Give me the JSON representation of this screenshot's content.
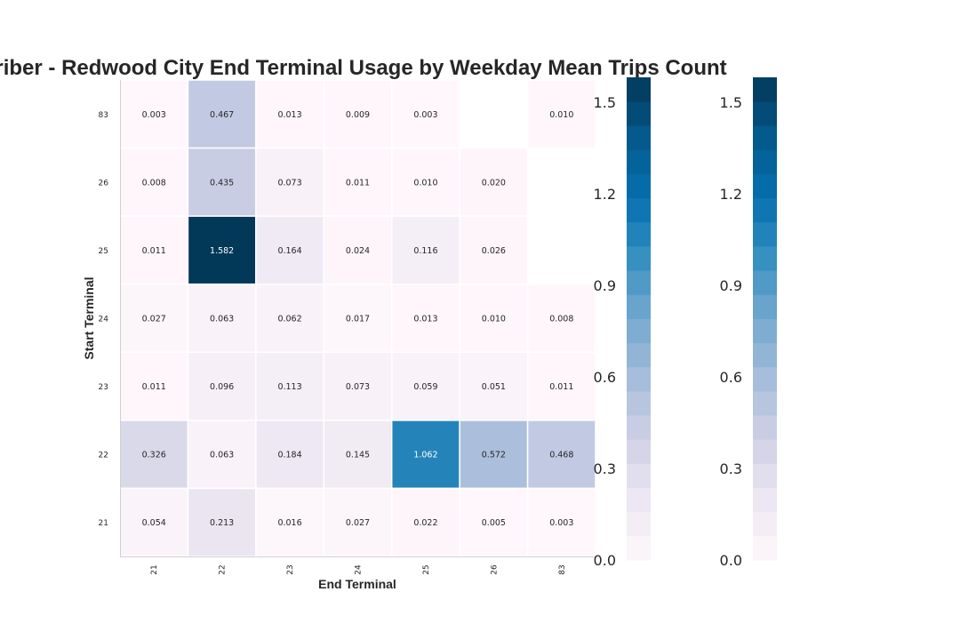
{
  "chart_data": {
    "type": "heatmap",
    "title": "Subscriber - Redwood City End Terminal Usage by Weekday Mean Trips Count",
    "xlabel": "End Terminal",
    "ylabel": "Start Terminal",
    "x_categories": [
      "21",
      "22",
      "23",
      "24",
      "25",
      "26",
      "83"
    ],
    "y_categories_top_to_bottom": [
      "83",
      "26",
      "25",
      "24",
      "23",
      "22",
      "21"
    ],
    "values": [
      [
        0.003,
        0.467,
        0.013,
        0.009,
        0.003,
        null,
        0.01
      ],
      [
        0.008,
        0.435,
        0.073,
        0.011,
        0.01,
        0.02,
        null
      ],
      [
        0.011,
        1.582,
        0.164,
        0.024,
        0.116,
        0.026,
        null
      ],
      [
        0.027,
        0.063,
        0.062,
        0.017,
        0.013,
        0.01,
        0.008
      ],
      [
        0.011,
        0.096,
        0.113,
        0.073,
        0.059,
        0.051,
        0.011
      ],
      [
        0.326,
        0.063,
        0.184,
        0.145,
        1.062,
        0.572,
        0.468
      ],
      [
        0.054,
        0.213,
        0.016,
        0.027,
        0.022,
        0.005,
        0.003
      ]
    ],
    "value_labels": [
      [
        "0.003",
        "0.467",
        "0.013",
        "0.009",
        "0.003",
        "",
        "0.010"
      ],
      [
        "0.008",
        "0.435",
        "0.073",
        "0.011",
        "0.010",
        "0.020",
        ""
      ],
      [
        "0.011",
        "1.582",
        "0.164",
        "0.024",
        "0.116",
        "0.026",
        ""
      ],
      [
        "0.027",
        "0.063",
        "0.062",
        "0.017",
        "0.013",
        "0.010",
        "0.008"
      ],
      [
        "0.011",
        "0.096",
        "0.113",
        "0.073",
        "0.059",
        "0.051",
        "0.011"
      ],
      [
        "0.326",
        "0.063",
        "0.184",
        "0.145",
        "1.062",
        "0.572",
        "0.468"
      ],
      [
        "0.054",
        "0.213",
        "0.016",
        "0.027",
        "0.022",
        "0.005",
        "0.003"
      ]
    ],
    "colorbar": {
      "range": [
        0,
        1.582
      ],
      "ticks": [
        0.0,
        0.3,
        0.6,
        0.9,
        1.2,
        1.5
      ],
      "tick_labels": [
        "0.0",
        "0.3",
        "0.6",
        "0.9",
        "1.2",
        "1.5"
      ],
      "count": 2
    },
    "colormap": "PuBu",
    "colormap_stops": [
      "#fff7fb",
      "#ece7f2",
      "#d0d1e6",
      "#a6bddb",
      "#74a9cf",
      "#3690c0",
      "#0570b0",
      "#045a8d",
      "#023858"
    ],
    "grid": false
  }
}
